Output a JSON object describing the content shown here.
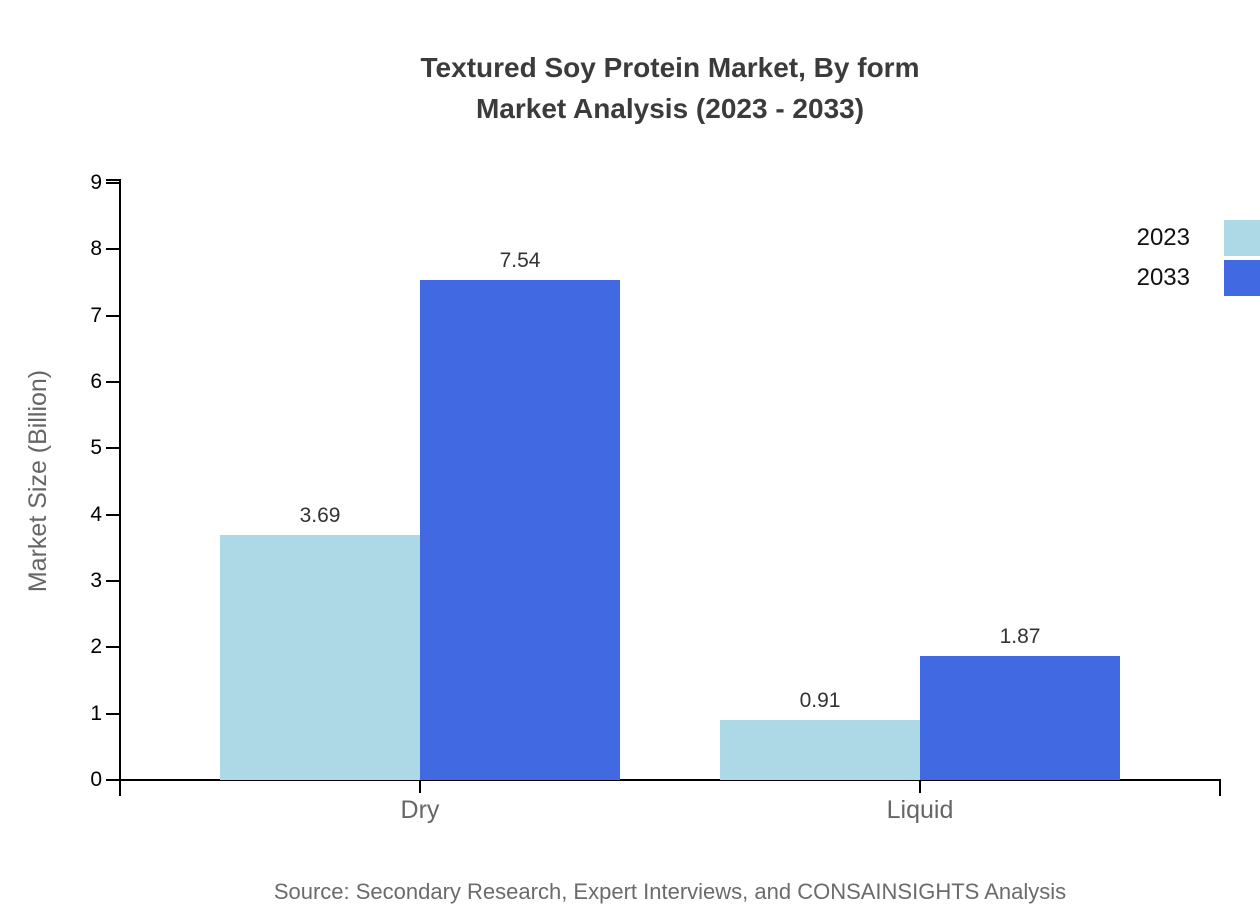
{
  "chart": {
    "title_line1": "Textured Soy Protein Market, By form",
    "title_line2": "Market Analysis (2023 - 2033)",
    "source": "Source: Secondary Research, Expert Interviews, and CONSAINSIGHTS Analysis"
  },
  "chart_data": {
    "type": "bar",
    "title": "Textured Soy Protein Market, By form Market Analysis (2023 - 2033)",
    "categories": [
      "Dry",
      "Liquid"
    ],
    "series": [
      {
        "name": "2023",
        "color": "#add8e6",
        "values": [
          3.69,
          0.91
        ]
      },
      {
        "name": "2033",
        "color": "#4169e1",
        "values": [
          7.54,
          1.87
        ]
      }
    ],
    "xlabel": "",
    "ylabel": "Market Size (Billion)",
    "ylim": [
      0,
      9
    ],
    "yticks": [
      0,
      1,
      2,
      3,
      4,
      5,
      6,
      7,
      8,
      9
    ],
    "grid": false,
    "value_labels": true,
    "value_label_format": "2dp",
    "legend_position": "top-right",
    "axis_color": "#000000",
    "text_color": "#666666"
  }
}
